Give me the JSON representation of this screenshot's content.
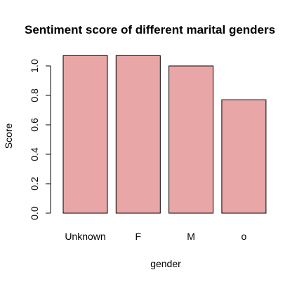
{
  "chart_data": {
    "type": "bar",
    "title": "Sentiment score of different marital genders",
    "xlabel": "gender",
    "ylabel": "Score",
    "categories": [
      "Unknown",
      "F",
      "M",
      "o"
    ],
    "values": [
      1.07,
      1.07,
      1.0,
      0.77
    ],
    "ylim": [
      0,
      1.08
    ],
    "yticks": [
      "0.0",
      "0.2",
      "0.4",
      "0.6",
      "0.8",
      "1.0"
    ],
    "bar_color": "#e9a6a6",
    "bar_border": "#000000",
    "grid": false,
    "legend": "none"
  }
}
